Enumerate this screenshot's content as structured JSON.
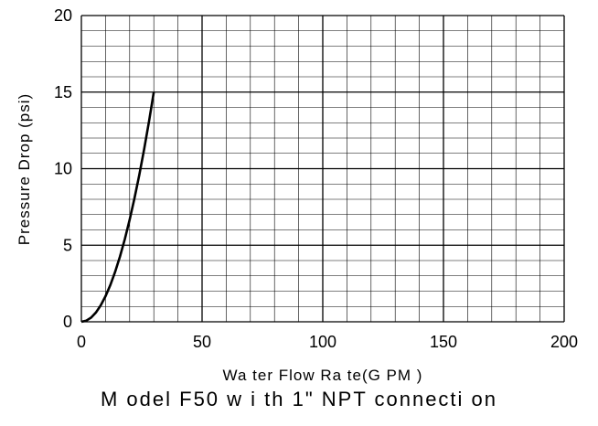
{
  "chart_data": {
    "type": "line",
    "xlabel": "Wa ter Flow Ra te(G PM )",
    "ylabel": "Pressure Drop (psi)",
    "xlim": [
      0,
      200
    ],
    "ylim": [
      0,
      20
    ],
    "x_ticks": [
      "0",
      "50",
      "100",
      "150",
      "200"
    ],
    "y_ticks": [
      "0",
      "5",
      "10",
      "15",
      "20"
    ],
    "grid": true,
    "series": [
      {
        "x": [
          0,
          2,
          4,
          6,
          8,
          10,
          12,
          14,
          16,
          18,
          20,
          22,
          24,
          26,
          28,
          30
        ],
        "y": [
          0,
          0.07,
          0.27,
          0.6,
          1.07,
          1.67,
          2.4,
          3.27,
          4.27,
          5.4,
          6.67,
          8.07,
          9.6,
          11.27,
          13.07,
          15.0
        ],
        "color": "#000000"
      }
    ]
  },
  "caption": "M odel F50 w i th 1\"  NPT  connecti on"
}
